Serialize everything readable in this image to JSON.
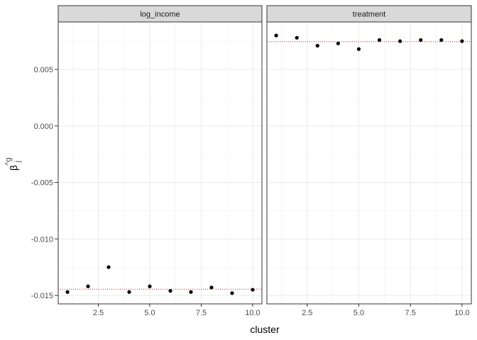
{
  "chart_data": {
    "type": "scatter",
    "facets": [
      {
        "strip_label": "log_income",
        "x": [
          1,
          2,
          3,
          4,
          5,
          6,
          7,
          8,
          9,
          10
        ],
        "y": [
          -0.0147,
          -0.0142,
          -0.0125,
          -0.0147,
          -0.0142,
          -0.0146,
          -0.0147,
          -0.0143,
          -0.0148,
          -0.0145
        ],
        "reference_line": -0.01445
      },
      {
        "strip_label": "treatment",
        "x": [
          1,
          2,
          3,
          4,
          5,
          6,
          7,
          8,
          9,
          10
        ],
        "y": [
          0.008,
          0.0078,
          0.0071,
          0.0073,
          0.0068,
          0.0076,
          0.0075,
          0.0076,
          0.0076,
          0.0075
        ],
        "reference_line": 0.00745
      }
    ],
    "xlabel": "cluster",
    "ylabel_main": "β",
    "ylabel_sub": "j",
    "ylabel_sup": "^g",
    "xlim": [
      0.55,
      10.45
    ],
    "ylim": [
      -0.01575,
      0.0092
    ],
    "x_ticks": [
      2.5,
      5.0,
      7.5,
      10.0
    ],
    "x_tick_labels": [
      "2.5",
      "5.0",
      "7.5",
      "10.0"
    ],
    "y_ticks": [
      0.005,
      0.0,
      -0.005,
      -0.01,
      -0.015
    ],
    "y_tick_labels": [
      "0.005",
      "0.000",
      "-0.005",
      "-0.010",
      "-0.015"
    ],
    "grid": true,
    "point_color": "#000000",
    "reference_color": "#e41a1c",
    "strip_fill": "#d9d9d9"
  }
}
